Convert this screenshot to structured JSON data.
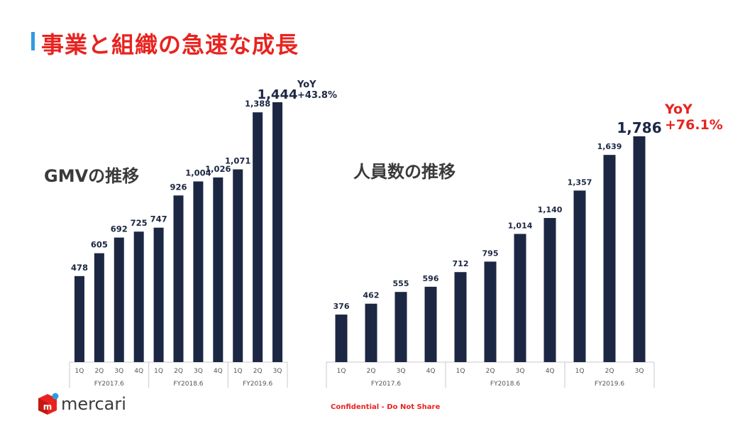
{
  "page": {
    "title": "事業と組織の急速な成長",
    "footer": "Confidential - Do Not Share",
    "logo_text": "mercari",
    "colors": {
      "bar": "#1c2743",
      "title": "#e8231f",
      "accent": "#2f9be0",
      "divider": "#c8c8c8"
    }
  },
  "chart_data": [
    {
      "type": "bar",
      "title": "GMVの推移",
      "categories": [
        "1Q",
        "2Q",
        "3Q",
        "4Q",
        "1Q",
        "2Q",
        "3Q",
        "4Q",
        "1Q",
        "2Q",
        "3Q"
      ],
      "groups": [
        {
          "label": "FY2017.6",
          "count": 4
        },
        {
          "label": "FY2018.6",
          "count": 4
        },
        {
          "label": "FY2019.6",
          "count": 3
        }
      ],
      "values": [
        478,
        605,
        692,
        725,
        747,
        926,
        1004,
        1026,
        1071,
        1388,
        1444
      ],
      "value_labels": [
        "478",
        "605",
        "692",
        "725",
        "747",
        "926",
        "1,004",
        "1,026",
        "1,071",
        "1,388",
        "1,444"
      ],
      "ylim": [
        0,
        1444
      ],
      "yoy": {
        "label": "YoY",
        "value": "+43.8%"
      }
    },
    {
      "type": "bar",
      "title": "人員数の推移",
      "categories": [
        "1Q",
        "2Q",
        "3Q",
        "4Q",
        "1Q",
        "2Q",
        "3Q",
        "4Q",
        "1Q",
        "2Q",
        "3Q"
      ],
      "groups": [
        {
          "label": "FY2017.6",
          "count": 4
        },
        {
          "label": "FY2018.6",
          "count": 4
        },
        {
          "label": "FY2019.6",
          "count": 3
        }
      ],
      "values": [
        376,
        462,
        555,
        596,
        712,
        795,
        1014,
        1140,
        1357,
        1639,
        1786
      ],
      "value_labels": [
        "376",
        "462",
        "555",
        "596",
        "712",
        "795",
        "1,014",
        "1,140",
        "1,357",
        "1,639",
        "1,786"
      ],
      "ylim": [
        0,
        1786
      ],
      "yoy": {
        "label": "YoY",
        "value": "+76.1%"
      }
    }
  ]
}
